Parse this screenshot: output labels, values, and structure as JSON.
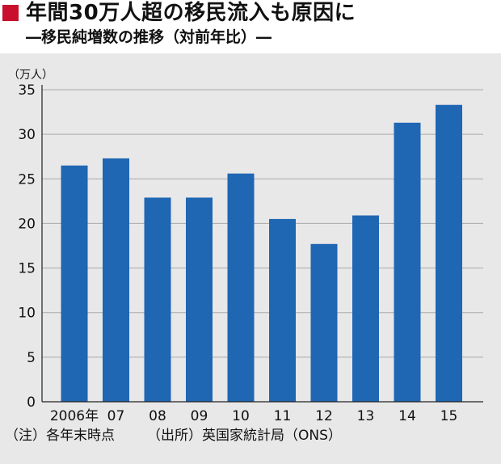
{
  "header": {
    "title": "年間30万人超の移民流入も原因に",
    "subtitle": "―移民純増数の推移（対前年比）―"
  },
  "colors": {
    "accent": "#c8102e",
    "bar": "#1f66b3",
    "panel": "#e8e8e8",
    "grid": "#aaaaaa"
  },
  "chart_data": {
    "type": "bar",
    "title": "",
    "unit_label": "（万人）",
    "ylim": [
      0,
      35
    ],
    "yticks": [
      0,
      5,
      10,
      15,
      20,
      25,
      30,
      35
    ],
    "grid": true,
    "categories": [
      "2006年",
      "07",
      "08",
      "09",
      "10",
      "11",
      "12",
      "13",
      "14",
      "15"
    ],
    "values": [
      26.5,
      27.3,
      22.9,
      22.9,
      25.6,
      20.5,
      17.7,
      20.9,
      31.3,
      33.3
    ]
  },
  "footer": {
    "note": "（注）各年末時点",
    "source": "（出所）英国家統計局（ONS）"
  }
}
